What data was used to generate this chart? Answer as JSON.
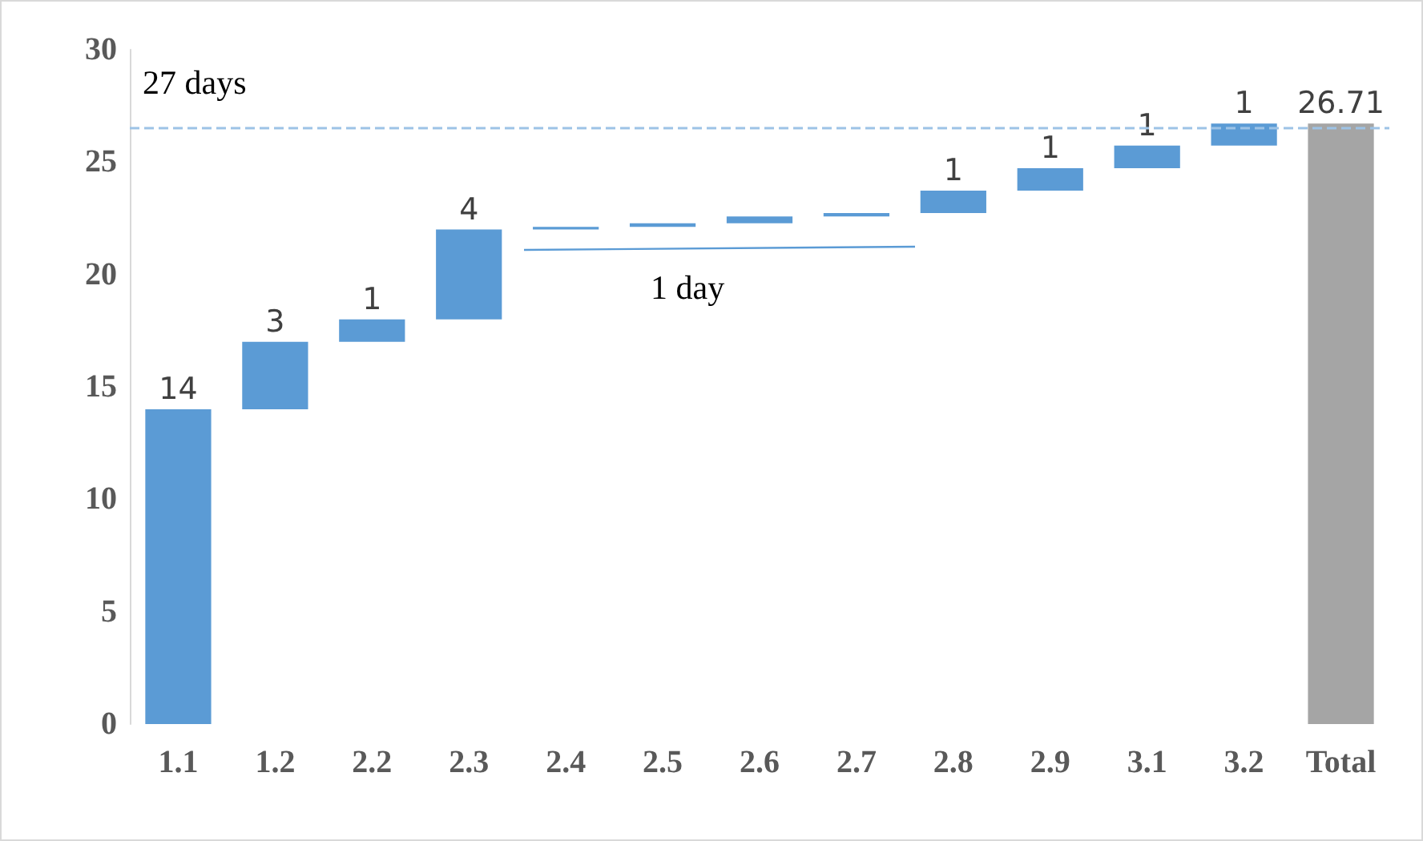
{
  "chart_data": {
    "type": "bar",
    "categories": [
      "1.1",
      "1.2",
      "2.2",
      "2.3",
      "2.4",
      "2.5",
      "2.6",
      "2.7",
      "2.8",
      "2.9",
      "3.1",
      "3.2",
      "Total"
    ],
    "values": [
      14,
      3,
      1,
      4,
      0.12,
      0.16,
      0.3,
      0.15,
      1,
      1,
      1,
      0.98,
      26.71
    ],
    "base": [
      0,
      14,
      17,
      18,
      22,
      22.12,
      22.28,
      22.58,
      22.73,
      23.73,
      24.73,
      25.73,
      0
    ],
    "colors": [
      "#5b9bd5",
      "#5b9bd5",
      "#5b9bd5",
      "#5b9bd5",
      "#5b9bd5",
      "#5b9bd5",
      "#5b9bd5",
      "#5b9bd5",
      "#5b9bd5",
      "#5b9bd5",
      "#5b9bd5",
      "#5b9bd5",
      "#a5a5a5"
    ],
    "value_labels": [
      "14",
      "3",
      "1",
      "4",
      null,
      null,
      null,
      null,
      "1",
      "1",
      "1",
      "1",
      "26.71"
    ],
    "ylim": [
      0,
      30
    ],
    "yticks": [
      0,
      5,
      10,
      15,
      20,
      25,
      30
    ],
    "grid": false,
    "ref_lines": [
      {
        "axis": "y",
        "value": 26.5,
        "label": "27 days",
        "color": "#9dc3e6",
        "line_style": "dashed"
      }
    ],
    "annotations": [
      "1 day"
    ]
  }
}
